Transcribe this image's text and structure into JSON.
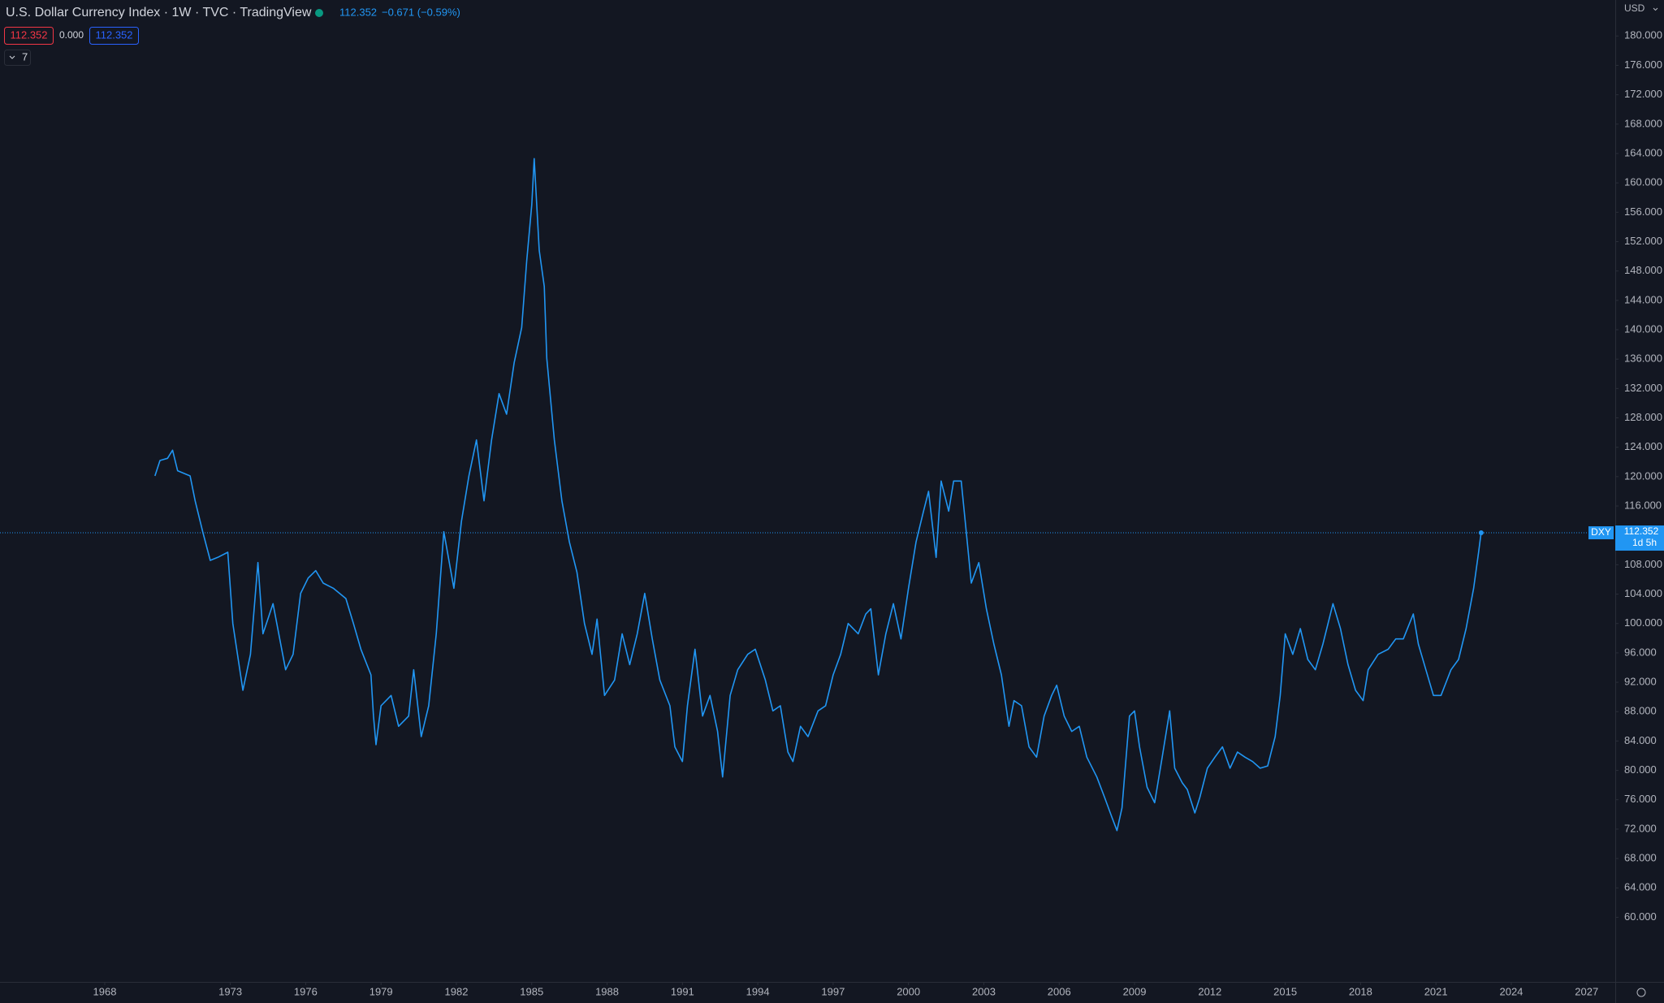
{
  "header": {
    "title": "U.S. Dollar Currency Index · 1W · TVC · TradingView",
    "quote_price": "112.352",
    "quote_change": "−0.671 (−0.59%)",
    "box_sell": "112.352",
    "box_spread": "0.000",
    "box_buy": "112.352",
    "indicators_count": "7",
    "currency": "USD",
    "last_price": "112.352",
    "countdown": "1d 5h"
  },
  "chart_data": {
    "type": "line",
    "x": [
      1970.0,
      1970.2,
      1970.5,
      1970.7,
      1970.9,
      1971.4,
      1971.6,
      1971.9,
      1972.2,
      1972.5,
      1972.9,
      1973.1,
      1973.5,
      1973.8,
      1974.1,
      1974.3,
      1974.7,
      1975.2,
      1975.5,
      1975.8,
      1976.1,
      1976.4,
      1976.7,
      1977.1,
      1977.6,
      1977.9,
      1978.2,
      1978.6,
      1978.7,
      1978.8,
      1979.0,
      1979.4,
      1979.7,
      1980.1,
      1980.3,
      1980.6,
      1980.9,
      1981.2,
      1981.5,
      1981.9,
      1982.2,
      1982.5,
      1982.8,
      1983.1,
      1983.4,
      1983.7,
      1984.0,
      1984.3,
      1984.6,
      1984.8,
      1985.0,
      1985.1,
      1985.3,
      1985.5,
      1985.6,
      1985.9,
      1986.2,
      1986.5,
      1986.8,
      1987.1,
      1987.4,
      1987.6,
      1987.9,
      1988.3,
      1988.6,
      1988.9,
      1989.2,
      1989.5,
      1989.8,
      1990.1,
      1990.5,
      1990.7,
      1991.0,
      1991.2,
      1991.5,
      1991.8,
      1992.1,
      1992.4,
      1992.6,
      1992.9,
      1993.2,
      1993.6,
      1993.9,
      1994.3,
      1994.6,
      1994.9,
      1995.2,
      1995.4,
      1995.7,
      1996.0,
      1996.4,
      1996.7,
      1997.0,
      1997.3,
      1997.6,
      1998.0,
      1998.3,
      1998.5,
      1998.8,
      1999.1,
      1999.4,
      1999.7,
      2000.0,
      2000.3,
      2000.6,
      2000.8,
      2001.1,
      2001.3,
      2001.6,
      2001.8,
      2002.1,
      2002.3,
      2002.5,
      2002.8,
      2003.1,
      2003.4,
      2003.7,
      2004.0,
      2004.2,
      2004.5,
      2004.8,
      2005.1,
      2005.4,
      2005.7,
      2005.9,
      2006.2,
      2006.5,
      2006.8,
      2007.1,
      2007.5,
      2007.8,
      2008.1,
      2008.3,
      2008.5,
      2008.8,
      2009.0,
      2009.2,
      2009.5,
      2009.8,
      2010.1,
      2010.4,
      2010.6,
      2010.9,
      2011.1,
      2011.4,
      2011.6,
      2011.9,
      2012.2,
      2012.5,
      2012.8,
      2013.1,
      2013.4,
      2013.7,
      2014.0,
      2014.3,
      2014.6,
      2014.8,
      2015.0,
      2015.3,
      2015.6,
      2015.9,
      2016.2,
      2016.5,
      2016.9,
      2017.2,
      2017.5,
      2017.8,
      2018.1,
      2018.3,
      2018.7,
      2019.1,
      2019.4,
      2019.7,
      2020.1,
      2020.3,
      2020.6,
      2020.9,
      2021.2,
      2021.6,
      2021.9,
      2022.2,
      2022.5,
      2022.7,
      2022.8
    ],
    "series": [
      {
        "name": "DXY",
        "color": "#2196f3",
        "values": [
          120.1,
          122.2,
          122.5,
          123.6,
          120.8,
          120.1,
          116.7,
          112.5,
          108.6,
          109.0,
          109.7,
          100.0,
          90.9,
          95.8,
          108.3,
          98.6,
          102.7,
          93.7,
          95.8,
          104.1,
          106.2,
          107.2,
          105.5,
          104.8,
          103.4,
          100.0,
          96.5,
          93.0,
          87.4,
          83.5,
          88.8,
          90.2,
          86.0,
          87.4,
          93.7,
          84.6,
          88.8,
          98.6,
          112.5,
          104.8,
          113.9,
          120.1,
          125.0,
          116.7,
          125.0,
          131.3,
          128.5,
          135.5,
          140.3,
          149.4,
          157.0,
          163.3,
          150.8,
          145.9,
          136.1,
          125.0,
          116.7,
          111.1,
          107.0,
          100.0,
          95.8,
          100.6,
          90.2,
          92.3,
          98.6,
          94.4,
          98.6,
          104.1,
          97.9,
          92.3,
          88.8,
          83.2,
          81.2,
          88.8,
          96.5,
          87.4,
          90.2,
          85.3,
          79.1,
          90.2,
          93.7,
          95.8,
          96.5,
          92.3,
          88.1,
          88.8,
          82.5,
          81.2,
          86.0,
          84.6,
          88.1,
          88.8,
          93.0,
          95.8,
          100.0,
          98.6,
          101.3,
          102.0,
          93.0,
          98.6,
          102.7,
          97.9,
          104.8,
          111.1,
          115.3,
          118.0,
          109.0,
          119.4,
          115.3,
          119.4,
          119.4,
          112.5,
          105.5,
          108.3,
          102.0,
          97.2,
          93.0,
          86.0,
          89.5,
          88.8,
          83.2,
          81.8,
          87.4,
          90.2,
          91.6,
          87.4,
          85.3,
          86.0,
          81.8,
          79.1,
          76.4,
          73.6,
          71.8,
          74.9,
          87.4,
          88.1,
          83.2,
          77.7,
          75.6,
          81.8,
          88.1,
          80.3,
          78.3,
          77.4,
          74.2,
          76.3,
          80.3,
          81.8,
          83.2,
          80.3,
          82.5,
          81.8,
          81.2,
          80.3,
          80.6,
          84.6,
          90.2,
          98.6,
          95.8,
          99.3,
          95.1,
          93.7,
          97.2,
          102.7,
          99.3,
          94.4,
          90.9,
          89.5,
          93.7,
          95.8,
          96.5,
          97.9,
          97.9,
          101.3,
          97.2,
          93.7,
          90.2,
          90.2,
          93.7,
          95.1,
          99.3,
          104.8,
          109.7,
          112.352
        ]
      }
    ],
    "xlim": [
      1963.83,
      2028.14
    ],
    "xticks": [
      1968,
      1973,
      1976,
      1979,
      1982,
      1985,
      1988,
      1991,
      1994,
      1997,
      2000,
      2003,
      2006,
      2009,
      2012,
      2015,
      2018,
      2021,
      2024,
      2027
    ],
    "ylim": [
      51.2,
      184.9
    ],
    "yticks": [
      {
        "value": 60,
        "label": "60.000"
      },
      {
        "value": 64,
        "label": "64.000"
      },
      {
        "value": 68,
        "label": "68.000"
      },
      {
        "value": 72,
        "label": "72.000"
      },
      {
        "value": 76,
        "label": "76.000"
      },
      {
        "value": 80,
        "label": "80.000"
      },
      {
        "value": 84,
        "label": "84.000"
      },
      {
        "value": 88,
        "label": "88.000"
      },
      {
        "value": 92,
        "label": "92.000"
      },
      {
        "value": 96,
        "label": "96.000"
      },
      {
        "value": 100,
        "label": "100.000"
      },
      {
        "value": 104,
        "label": "104.000"
      },
      {
        "value": 108,
        "label": "108.000"
      },
      {
        "value": 112,
        "label": "112.000"
      },
      {
        "value": 116,
        "label": "116.000"
      },
      {
        "value": 120,
        "label": "120.000"
      },
      {
        "value": 124,
        "label": "124.000"
      },
      {
        "value": 128,
        "label": "128.000"
      },
      {
        "value": 132,
        "label": "132.000"
      },
      {
        "value": 136,
        "label": "136.000"
      },
      {
        "value": 140,
        "label": "140.000"
      },
      {
        "value": 144,
        "label": "144.000"
      },
      {
        "value": 148,
        "label": "148.000"
      },
      {
        "value": 152,
        "label": "152.000"
      },
      {
        "value": 156,
        "label": "156.000"
      },
      {
        "value": 160,
        "label": "160.000"
      },
      {
        "value": 164,
        "label": "164.000"
      },
      {
        "value": 168,
        "label": "168.000"
      },
      {
        "value": 172,
        "label": "172.000"
      },
      {
        "value": 176,
        "label": "176.000"
      },
      {
        "value": 180,
        "label": "180.000"
      }
    ],
    "grid": false
  }
}
